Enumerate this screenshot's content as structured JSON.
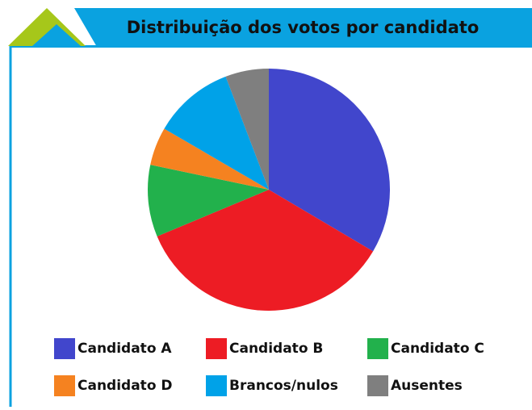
{
  "chart_data": {
    "type": "pie",
    "title": "Distribuição dos votos por candidato",
    "categories": [
      "Candidato A",
      "Candidato B",
      "Candidato C",
      "Candidato D",
      "Brancos/nulos",
      "Ausentes"
    ],
    "values": [
      33.5,
      35.2,
      9.6,
      5.1,
      10.8,
      5.8
    ],
    "colors": [
      "#4146cc",
      "#ed1c24",
      "#22b14c",
      "#f58220",
      "#00a2e8",
      "#7f7f7f"
    ],
    "legend": "bottom"
  }
}
